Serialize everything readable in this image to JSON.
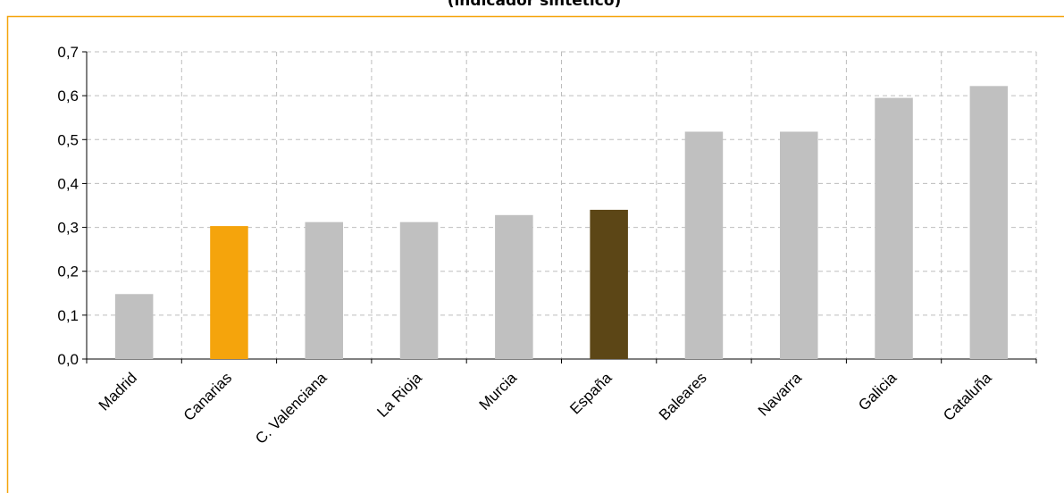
{
  "chart_data": {
    "type": "bar",
    "title": "(indicador sintético)",
    "categories": [
      "Madrid",
      "Canarias",
      "C. Valenciana",
      "La Rioja",
      "Murcia",
      "España",
      "Baleares",
      "Navarra",
      "Galicia",
      "Cataluña"
    ],
    "values": [
      0.148,
      0.303,
      0.312,
      0.312,
      0.328,
      0.34,
      0.518,
      0.518,
      0.595,
      0.622
    ],
    "colors": [
      "#c0c0c0",
      "#f5a40c",
      "#c0c0c0",
      "#c0c0c0",
      "#c0c0c0",
      "#5c4616",
      "#c0c0c0",
      "#c0c0c0",
      "#c0c0c0",
      "#c0c0c0"
    ],
    "ylim": [
      0,
      0.7
    ],
    "yticks": [
      {
        "value": 0,
        "label": "0,0"
      },
      {
        "value": 0.1,
        "label": "0,1"
      },
      {
        "value": 0.2,
        "label": "0,2"
      },
      {
        "value": 0.3,
        "label": "0,3"
      },
      {
        "value": 0.4,
        "label": "0,4"
      },
      {
        "value": 0.5,
        "label": "0,5"
      },
      {
        "value": 0.6,
        "label": "0,6"
      },
      {
        "value": 0.7,
        "label": "0,7"
      }
    ],
    "grid": true
  }
}
